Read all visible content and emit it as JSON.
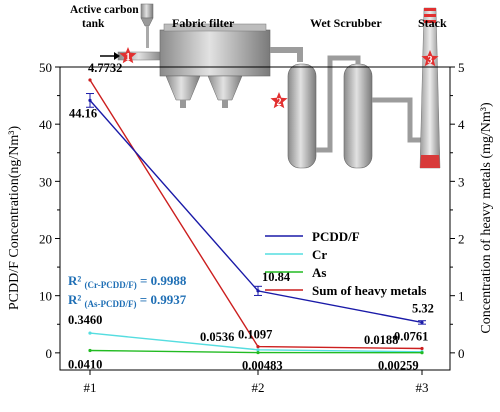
{
  "chart_data": {
    "type": "line",
    "categories": [
      "#1",
      "#2",
      "#3"
    ],
    "ylabel": "PCDD/F Concentration(ng/Nm³)",
    "y2label": "Concentration of heavy metals (mg/Nm³)",
    "ylim": [
      -3,
      50
    ],
    "y2lim": [
      -0.3,
      5
    ],
    "yticks": [
      0,
      10,
      20,
      30,
      40,
      50
    ],
    "y2ticks": [
      0,
      1,
      2,
      3,
      4,
      5
    ],
    "legend_position": "center-right",
    "grid": false,
    "series": [
      {
        "name": "PCDD/F",
        "axis": "left",
        "color": "#1a1aa8",
        "values": [
          44.16,
          10.84,
          5.32
        ],
        "errors": [
          1.2,
          0.8,
          0.3
        ]
      },
      {
        "name": "Cr",
        "axis": "right",
        "color": "#55dde0",
        "values": [
          0.346,
          0.0536,
          0.0188
        ]
      },
      {
        "name": "As",
        "axis": "right",
        "color": "#22bb22",
        "values": [
          0.041,
          0.00483,
          0.00259
        ]
      },
      {
        "name": "Sum of heavy metals",
        "axis": "right",
        "color": "#cc1f1f",
        "values": [
          4.7732,
          0.1097,
          0.0761
        ]
      }
    ],
    "data_labels": [
      {
        "text": "4.7732",
        "series": 3,
        "point": 0,
        "color": "#000000"
      },
      {
        "text": "44.16",
        "series": 0,
        "point": 0,
        "color": "#000000"
      },
      {
        "text": "10.84",
        "series": 0,
        "point": 1,
        "color": "#000000"
      },
      {
        "text": "5.32",
        "series": 0,
        "point": 2,
        "color": "#000000"
      },
      {
        "text": "0.3460",
        "series": 1,
        "point": 0,
        "color": "#000000"
      },
      {
        "text": "0.0536",
        "series": 1,
        "point": 1,
        "color": "#000000"
      },
      {
        "text": "0.1097",
        "series": 3,
        "point": 1,
        "color": "#000000"
      },
      {
        "text": "0.0188",
        "series": 1,
        "point": 2,
        "color": "#000000"
      },
      {
        "text": "0.0761",
        "series": 3,
        "point": 2,
        "color": "#000000"
      },
      {
        "text": "0.0410",
        "series": 2,
        "point": 0,
        "color": "#000000"
      },
      {
        "text": "0.00483",
        "series": 2,
        "point": 1,
        "color": "#000000"
      },
      {
        "text": "0.00259",
        "series": 2,
        "point": 2,
        "color": "#000000"
      }
    ],
    "annotations": {
      "r2_cr": {
        "prefix": "R²",
        "sub": "(Cr-PCDD/F)",
        "value": "= 0.9988",
        "color": "#1f6fb5"
      },
      "r2_as": {
        "prefix": "R²",
        "sub": "(As-PCDD/F)",
        "value": "= 0.9937",
        "color": "#1f6fb5"
      }
    }
  },
  "diagram": {
    "labels": {
      "active_carbon_line1": "Active carbon",
      "active_carbon_line2": "tank",
      "fabric_filter": "Fabric filter",
      "wet_scrubber": "Wet Scrubber",
      "stack": "Stack"
    },
    "markers": [
      "1",
      "2",
      "3"
    ],
    "marker_color": "#e23030"
  }
}
